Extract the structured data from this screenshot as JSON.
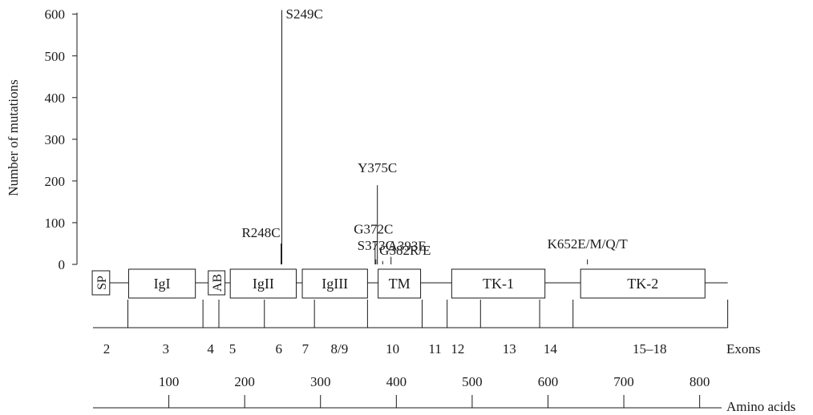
{
  "chart_data": {
    "type": "bar",
    "ylabel": "Number of mutations",
    "ylim": [
      0,
      600
    ],
    "yticks": [
      0,
      100,
      200,
      300,
      400,
      500,
      600
    ],
    "series": [
      {
        "values": [
          {
            "label": "S249C",
            "aa": 249,
            "count": 610,
            "color": "#1a1a1a"
          },
          {
            "label": "R248C",
            "aa": 248,
            "count": 50,
            "color": "#1a1a1a"
          },
          {
            "label": "G372C",
            "aa": 372,
            "count": 55,
            "color": "#1a1a1a"
          },
          {
            "label": "S373C",
            "aa": 373,
            "count": 12,
            "color": "#888888"
          },
          {
            "label": "Y375C",
            "aa": 375,
            "count": 190,
            "color": "#1a1a1a"
          },
          {
            "label": "G382R/E",
            "aa": 382,
            "count": 8,
            "color": "#888888"
          },
          {
            "label": "A393E",
            "aa": 393,
            "count": 18,
            "color": "#1a1a1a"
          },
          {
            "label": "K652E/M/Q/T",
            "aa": 652,
            "count": 12,
            "color": "#1a1a1a"
          }
        ]
      }
    ],
    "domains": [
      {
        "label": "SP",
        "start": -1,
        "end": 22,
        "vertical": true
      },
      {
        "label": "IgI",
        "start": 47,
        "end": 135
      },
      {
        "label": "AB",
        "start": 152,
        "end": 174,
        "vertical": true
      },
      {
        "label": "IgII",
        "start": 181,
        "end": 268
      },
      {
        "label": "IgIII",
        "start": 276,
        "end": 362
      },
      {
        "label": "TM",
        "start": 376,
        "end": 432
      },
      {
        "label": "TK-1",
        "start": 473,
        "end": 596
      },
      {
        "label": "TK-2",
        "start": 643,
        "end": 807
      }
    ],
    "protein_end": 837,
    "exon_boundaries": [
      46,
      145,
      166,
      226,
      292,
      362,
      434,
      467,
      511,
      589,
      633,
      837
    ],
    "exons": [
      {
        "label": "2",
        "aa": 18
      },
      {
        "label": "3",
        "aa": 96
      },
      {
        "label": "4",
        "aa": 155
      },
      {
        "label": "5",
        "aa": 184
      },
      {
        "label": "6",
        "aa": 245
      },
      {
        "label": "7",
        "aa": 280
      },
      {
        "label": "8/9",
        "aa": 325
      },
      {
        "label": "10",
        "aa": 395
      },
      {
        "label": "11",
        "aa": 451
      },
      {
        "label": "12",
        "aa": 481
      },
      {
        "label": "13",
        "aa": 549
      },
      {
        "label": "14",
        "aa": 603
      },
      {
        "label": "15–18",
        "aa": 734
      }
    ],
    "exons_label": "Exons",
    "aa_axis": {
      "start": 0,
      "end": 806,
      "ticks": [
        100,
        200,
        300,
        400,
        500,
        600,
        700,
        800
      ],
      "label": "Amino acids"
    }
  }
}
